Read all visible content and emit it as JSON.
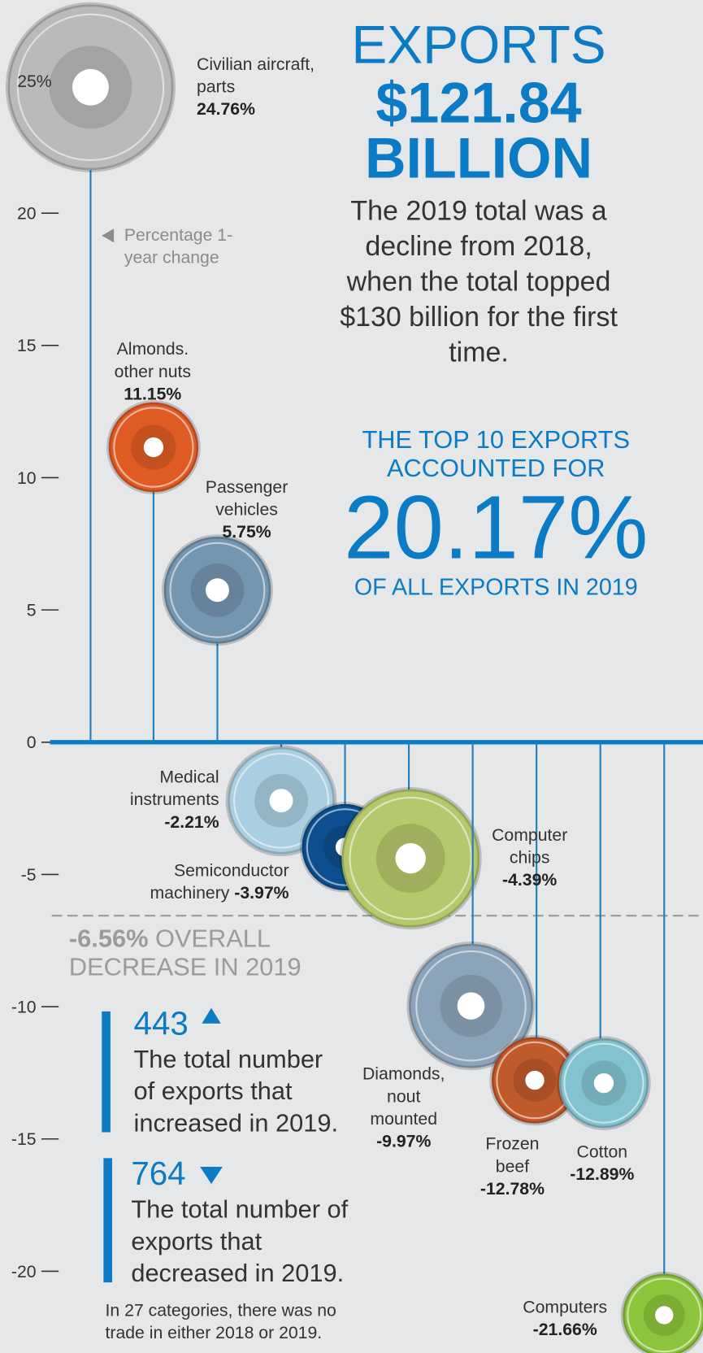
{
  "chart_data": {
    "type": "lollipop",
    "title": "EXPORTS",
    "total": "$121.84",
    "total_unit": "BILLION",
    "description": "The 2019 total was a decline from 2018, when the total topped $130 billion for the first time.",
    "top10_intro": "THE TOP 10 EXPORTS ACCOUNTED FOR",
    "top10_share": "20.17%",
    "top10_outro": "OF ALL EXPORTS IN 2019",
    "legend_text": "Percentage 1-year change",
    "categories": [
      "Civilian aircraft, parts",
      "Almonds. other nuts",
      "Passenger vehicles",
      "Medical instruments",
      "Semiconductor machinery",
      "Computer chips",
      "Diamonds, nout mounted",
      "Frozen beef",
      "Cotton",
      "Computers"
    ],
    "values": [
      24.76,
      11.15,
      5.75,
      -2.21,
      -3.97,
      -4.39,
      -9.97,
      -12.78,
      -12.89,
      -21.66
    ],
    "value_labels": [
      "24.76%",
      "11.15%",
      "5.75%",
      "-2.21%",
      "-3.97%",
      "-4.39%",
      "-9.97%",
      "-12.78%",
      "-12.89%",
      "-21.66%"
    ],
    "colors": [
      "#b9babc",
      "#e05a24",
      "#7596b1",
      "#a9cfe0",
      "#0d4f8e",
      "#b6c86c",
      "#8ca4b9",
      "#c15a2b",
      "#83c3d0",
      "#8cc43c"
    ],
    "ylim": [
      -23,
      28
    ],
    "yticks": [
      {
        "value": 25,
        "label": "25%"
      },
      20,
      15,
      10,
      5,
      0,
      -5,
      -10,
      -15,
      -20
    ],
    "overall": {
      "value": -6.56,
      "label": "-6.56%",
      "text": "OVERALL DECREASE IN 2019"
    },
    "increased": {
      "count": 443,
      "text": "The total number of exports that increased in 2019."
    },
    "decreased": {
      "count": 764,
      "text": "The total number of exports that decreased in 2019."
    },
    "footnote": "In 27 categories, there was no trade in either 2018 or 2019."
  }
}
